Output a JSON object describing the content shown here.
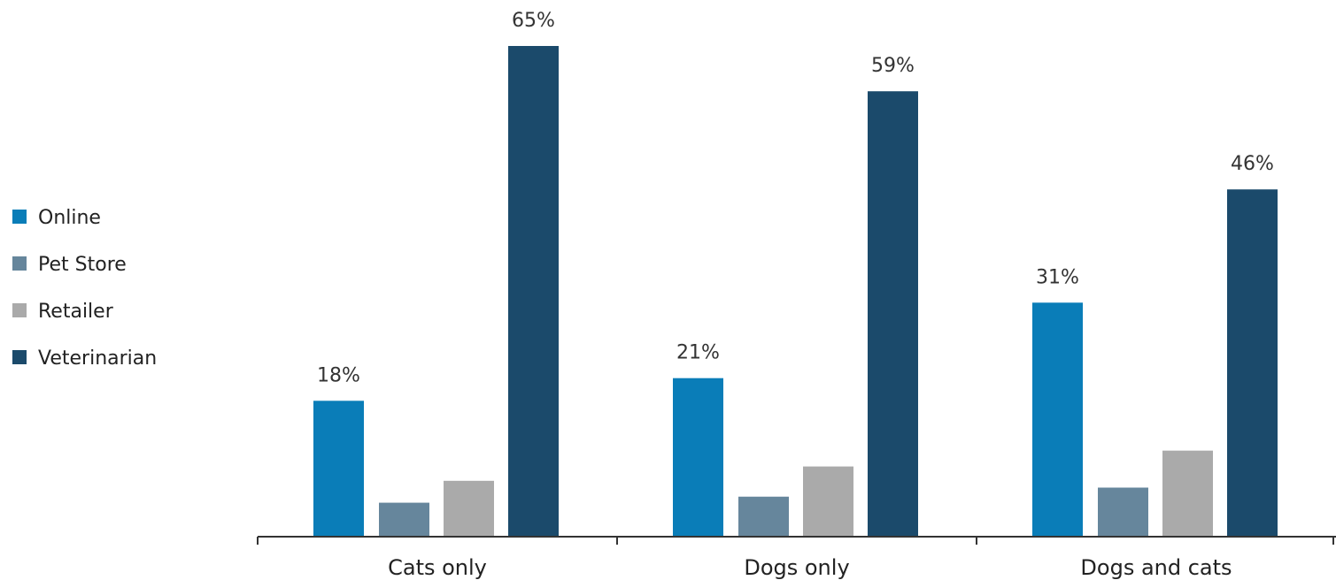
{
  "chart_data": {
    "type": "bar",
    "categories": [
      "Cats only",
      "Dogs only",
      "Dogs and cats"
    ],
    "series": [
      {
        "name": "Online",
        "color": "#0a7db8",
        "values": [
          18,
          21,
          31
        ],
        "labels": [
          "18%",
          "21%",
          "31%"
        ]
      },
      {
        "name": "Pet Store",
        "color": "#66869c",
        "values": [
          4.5,
          5.3,
          6.5
        ],
        "labels": [
          "",
          "",
          ""
        ]
      },
      {
        "name": "Retailer",
        "color": "#aaaaaa",
        "values": [
          7.4,
          9.3,
          11.4
        ],
        "labels": [
          "",
          "",
          ""
        ]
      },
      {
        "name": "Veterinarian",
        "color": "#1b4a6b",
        "values": [
          65,
          59,
          46
        ],
        "labels": [
          "65%",
          "59%",
          "46%"
        ]
      }
    ],
    "ylim": [
      0,
      65
    ],
    "grid": false,
    "legend_position": "left"
  }
}
